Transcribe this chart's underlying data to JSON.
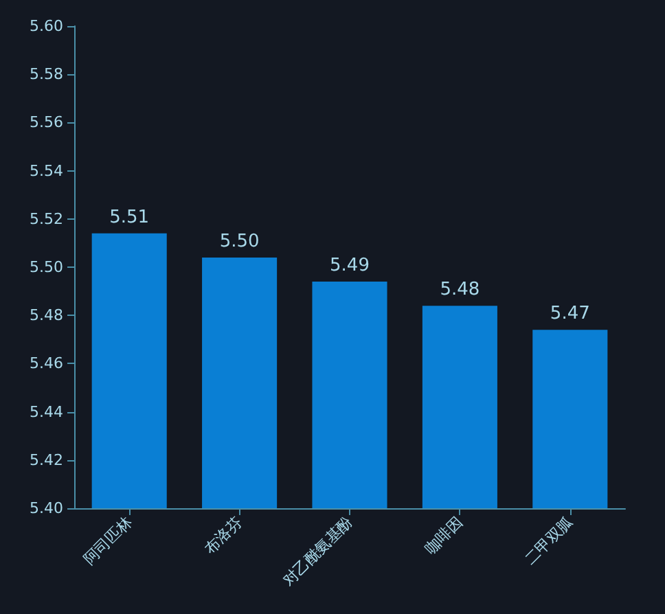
{
  "chart_data": {
    "type": "bar",
    "categories": [
      "阿司匹林",
      "布洛芬",
      "对乙酰氨基酚",
      "咖啡因",
      "二甲双胍"
    ],
    "values": [
      5.514,
      5.504,
      5.494,
      5.484,
      5.474
    ],
    "value_labels": [
      "5.51",
      "5.50",
      "5.49",
      "5.48",
      "5.47"
    ],
    "color": "#0a7fd4",
    "ylim": [
      5.4,
      5.6
    ],
    "yticks": [
      {
        "value": 5.4,
        "label": "5.40"
      },
      {
        "value": 5.42,
        "label": "5.42"
      },
      {
        "value": 5.44,
        "label": "5.44"
      },
      {
        "value": 5.46,
        "label": "5.46"
      },
      {
        "value": 5.48,
        "label": "5.48"
      },
      {
        "value": 5.5,
        "label": "5.50"
      },
      {
        "value": 5.52,
        "label": "5.52"
      },
      {
        "value": 5.54,
        "label": "5.54"
      },
      {
        "value": 5.56,
        "label": "5.56"
      },
      {
        "value": 5.58,
        "label": "5.58"
      },
      {
        "value": 5.6,
        "label": "5.60"
      }
    ],
    "grid": false
  }
}
